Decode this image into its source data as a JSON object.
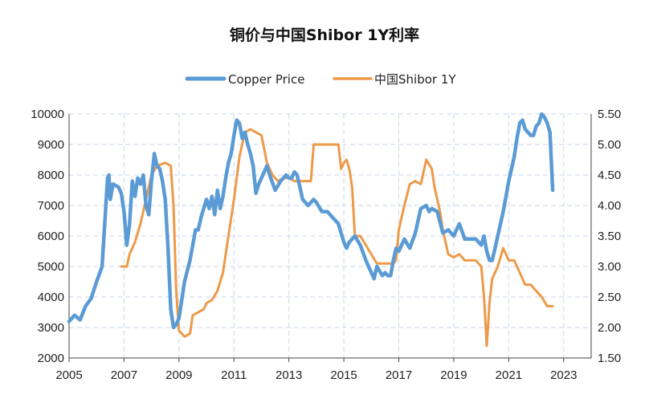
{
  "chart_data": {
    "type": "line",
    "title": "铜价与中国Shibor 1Y利率",
    "legend_position": "top-center",
    "grid": true,
    "x_range": [
      2005,
      2024
    ],
    "x_ticks": [
      "2005",
      "2007",
      "2009",
      "2011",
      "2013",
      "2015",
      "2017",
      "2019",
      "2021",
      "2023"
    ],
    "y_left": {
      "range": [
        2000,
        10000
      ],
      "ticks": [
        "2000",
        "3000",
        "4000",
        "5000",
        "6000",
        "7000",
        "8000",
        "9000",
        "10000"
      ]
    },
    "y_right": {
      "range": [
        1.5,
        5.5
      ],
      "ticks": [
        "1.50",
        "2.00",
        "2.50",
        "3.00",
        "3.50",
        "4.00",
        "4.50",
        "5.00",
        "5.50"
      ]
    },
    "series": [
      {
        "name": "Copper Price",
        "axis": "left",
        "color": "#5B9BD5",
        "x": [
          2005.0,
          2005.2,
          2005.4,
          2005.6,
          2005.8,
          2006.0,
          2006.2,
          2006.4,
          2006.45,
          2006.5,
          2006.6,
          2006.8,
          2006.9,
          2007.0,
          2007.1,
          2007.2,
          2007.3,
          2007.4,
          2007.5,
          2007.6,
          2007.7,
          2007.8,
          2007.9,
          2008.0,
          2008.1,
          2008.2,
          2008.3,
          2008.4,
          2008.5,
          2008.6,
          2008.7,
          2008.8,
          2008.9,
          2009.0,
          2009.2,
          2009.4,
          2009.6,
          2009.7,
          2009.8,
          2009.9,
          2010.0,
          2010.1,
          2010.2,
          2010.3,
          2010.4,
          2010.5,
          2010.6,
          2010.7,
          2010.8,
          2010.9,
          2011.0,
          2011.1,
          2011.2,
          2011.3,
          2011.4,
          2011.5,
          2011.6,
          2011.7,
          2011.8,
          2011.9,
          2012.0,
          2012.1,
          2012.2,
          2012.3,
          2012.5,
          2012.7,
          2012.9,
          2013.0,
          2013.1,
          2013.2,
          2013.3,
          2013.4,
          2013.5,
          2013.7,
          2013.9,
          2014.0,
          2014.2,
          2014.4,
          2014.6,
          2014.8,
          2015.0,
          2015.1,
          2015.2,
          2015.4,
          2015.6,
          2015.8,
          2016.0,
          2016.1,
          2016.2,
          2016.4,
          2016.5,
          2016.6,
          2016.7,
          2016.8,
          2016.9,
          2017.0,
          2017.2,
          2017.4,
          2017.6,
          2017.8,
          2018.0,
          2018.1,
          2018.2,
          2018.4,
          2018.6,
          2018.8,
          2019.0,
          2019.2,
          2019.4,
          2019.6,
          2019.8,
          2020.0,
          2020.1,
          2020.2,
          2020.3,
          2020.4,
          2020.5,
          2020.6,
          2020.8,
          2021.0,
          2021.2,
          2021.3,
          2021.4,
          2021.5,
          2021.6,
          2021.7,
          2021.8,
          2021.9,
          2022.0,
          2022.1,
          2022.2,
          2022.3,
          2022.4,
          2022.5,
          2022.6
        ],
        "values": [
          3200,
          3400,
          3250,
          3700,
          3950,
          4500,
          5000,
          7900,
          8000,
          7200,
          7700,
          7600,
          7400,
          6800,
          5700,
          6400,
          7800,
          7300,
          7900,
          7700,
          8000,
          7000,
          6700,
          7800,
          8700,
          8300,
          8200,
          7800,
          7200,
          5600,
          3600,
          3000,
          3100,
          3300,
          4500,
          5200,
          6200,
          6200,
          6600,
          6900,
          7200,
          6900,
          7300,
          6700,
          7500,
          6900,
          7300,
          7900,
          8400,
          8700,
          9300,
          9800,
          9700,
          9200,
          9400,
          9000,
          8700,
          8300,
          7400,
          7700,
          7900,
          8100,
          8300,
          8000,
          7500,
          7800,
          8000,
          7900,
          7900,
          8100,
          8000,
          7600,
          7200,
          7000,
          7200,
          7100,
          6800,
          6800,
          6600,
          6400,
          5800,
          5600,
          5800,
          6000,
          5700,
          5200,
          4800,
          4600,
          5000,
          4700,
          4800,
          4700,
          4700,
          5200,
          5600,
          5500,
          5900,
          5600,
          6100,
          6900,
          7000,
          6800,
          6900,
          6800,
          6100,
          6200,
          6000,
          6400,
          5900,
          5900,
          5900,
          5700,
          6000,
          5500,
          5200,
          5200,
          5600,
          6000,
          6800,
          7800,
          8600,
          9200,
          9700,
          9800,
          9500,
          9400,
          9300,
          9300,
          9600,
          9700,
          10000,
          9900,
          9700,
          9400,
          7500
        ]
      },
      {
        "name": "中国Shibor 1Y",
        "axis": "right",
        "color": "#ED9A49",
        "x": [
          2006.9,
          2007.1,
          2007.2,
          2007.4,
          2007.6,
          2007.8,
          2008.0,
          2008.2,
          2008.5,
          2008.7,
          2008.8,
          2008.9,
          2009.0,
          2009.2,
          2009.4,
          2009.5,
          2009.7,
          2009.9,
          2010.0,
          2010.2,
          2010.4,
          2010.6,
          2010.8,
          2011.0,
          2011.2,
          2011.4,
          2011.6,
          2011.8,
          2012.0,
          2012.2,
          2012.4,
          2012.6,
          2012.8,
          2013.0,
          2013.2,
          2013.4,
          2013.6,
          2013.8,
          2013.9,
          2014.0,
          2014.4,
          2014.8,
          2014.9,
          2015.0,
          2015.1,
          2015.2,
          2015.3,
          2015.4,
          2015.6,
          2015.8,
          2016.0,
          2016.2,
          2016.4,
          2016.6,
          2016.8,
          2016.9,
          2017.0,
          2017.2,
          2017.4,
          2017.6,
          2017.8,
          2018.0,
          2018.2,
          2018.3,
          2018.4,
          2018.5,
          2018.6,
          2018.8,
          2019.0,
          2019.2,
          2019.4,
          2019.6,
          2019.8,
          2020.0,
          2020.1,
          2020.2,
          2020.3,
          2020.4,
          2020.6,
          2020.8,
          2021.0,
          2021.2,
          2021.4,
          2021.6,
          2021.8,
          2022.0,
          2022.2,
          2022.4,
          2022.6
        ],
        "values": [
          3.0,
          3.0,
          3.2,
          3.4,
          3.7,
          4.1,
          4.5,
          4.65,
          4.7,
          4.65,
          4.0,
          2.6,
          1.95,
          1.85,
          1.9,
          2.2,
          2.25,
          2.3,
          2.4,
          2.45,
          2.6,
          2.9,
          3.5,
          4.1,
          4.8,
          5.2,
          5.25,
          5.2,
          5.15,
          4.7,
          4.5,
          4.4,
          4.45,
          4.45,
          4.4,
          4.4,
          4.4,
          4.4,
          5.0,
          5.0,
          5.0,
          5.0,
          4.6,
          4.7,
          4.75,
          4.6,
          4.3,
          3.5,
          3.5,
          3.35,
          3.2,
          3.05,
          3.05,
          3.05,
          3.05,
          3.1,
          3.6,
          4.0,
          4.35,
          4.4,
          4.35,
          4.75,
          4.6,
          4.3,
          4.1,
          3.9,
          3.6,
          3.2,
          3.15,
          3.2,
          3.1,
          3.1,
          3.1,
          3.0,
          2.5,
          1.7,
          2.4,
          2.8,
          3.0,
          3.3,
          3.1,
          3.1,
          2.9,
          2.7,
          2.7,
          2.6,
          2.5,
          2.35,
          2.35
        ]
      }
    ]
  }
}
